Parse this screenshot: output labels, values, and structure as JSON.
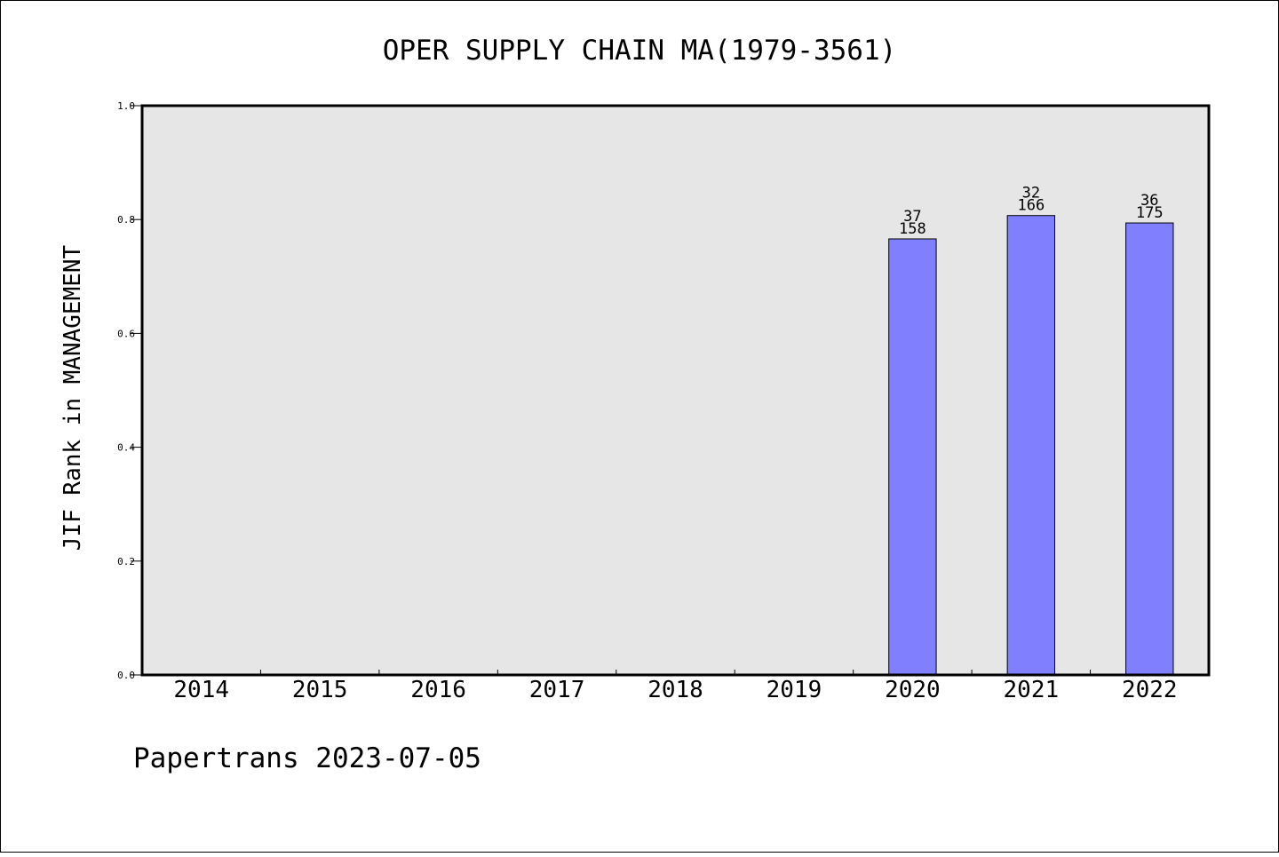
{
  "chart_data": {
    "type": "bar",
    "title": "OPER SUPPLY CHAIN MA(1979-3561)",
    "ylabel": "JIF Rank in MANAGEMENT",
    "xlabel": "",
    "categories": [
      "2014",
      "2015",
      "2016",
      "2017",
      "2018",
      "2019",
      "2020",
      "2021",
      "2022"
    ],
    "values": [
      null,
      null,
      null,
      null,
      null,
      null,
      0.766,
      0.807,
      0.794
    ],
    "rank_labels": [
      null,
      null,
      null,
      null,
      null,
      null,
      "37",
      "32",
      "36"
    ],
    "total_labels": [
      null,
      null,
      null,
      null,
      null,
      null,
      "158",
      "166",
      "175"
    ],
    "ylim": [
      0,
      1.0
    ],
    "yticks": [
      "0.0",
      "0.2",
      "0.4",
      "0.6",
      "0.8",
      "1.0"
    ],
    "grid": false,
    "colors": {
      "bar": "#8080ff",
      "plot_background": "#e6e6e6"
    }
  },
  "footer": {
    "text": "Papertrans 2023-07-05"
  }
}
